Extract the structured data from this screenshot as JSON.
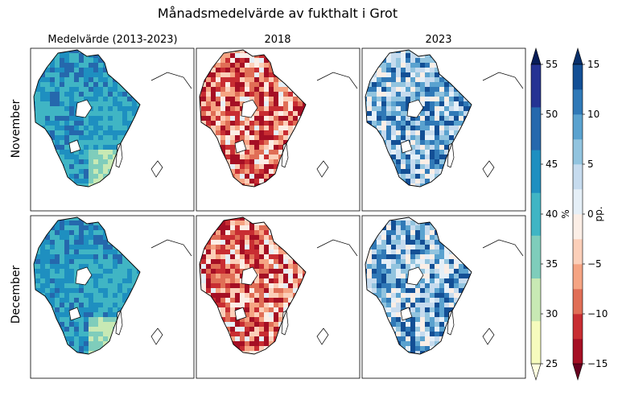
{
  "title": "Månadsmedelvärde av fukthalt i Grot",
  "columns": [
    "Medelvärde (2013-2023)",
    "2018",
    "2023"
  ],
  "rows": [
    "November",
    "December"
  ],
  "colorbar_abs": {
    "label": "%",
    "ticks": [
      "25",
      "30",
      "35",
      "40",
      "45",
      "50",
      "55"
    ],
    "colors": [
      "#f6fbbd",
      "#c8e9b4",
      "#7fcdbb",
      "#40b5c4",
      "#1e8fc0",
      "#2568ad",
      "#253393"
    ],
    "extend_low": "#ffffe0",
    "extend_high": "#081d58"
  },
  "colorbar_diff": {
    "label": "pp.",
    "ticks": [
      "−15",
      "−10",
      "−5",
      "0",
      "5",
      "10",
      "15"
    ],
    "colors": [
      "#a50f24",
      "#c82d32",
      "#e06e56",
      "#f5a483",
      "#fbcfb9",
      "#fbeee6",
      "#e5eff7",
      "#c6dbee",
      "#92c4df",
      "#5aa2cf",
      "#3079b7",
      "#134f95"
    ],
    "extend_low": "#67001f",
    "extend_high": "#08306b"
  }
}
